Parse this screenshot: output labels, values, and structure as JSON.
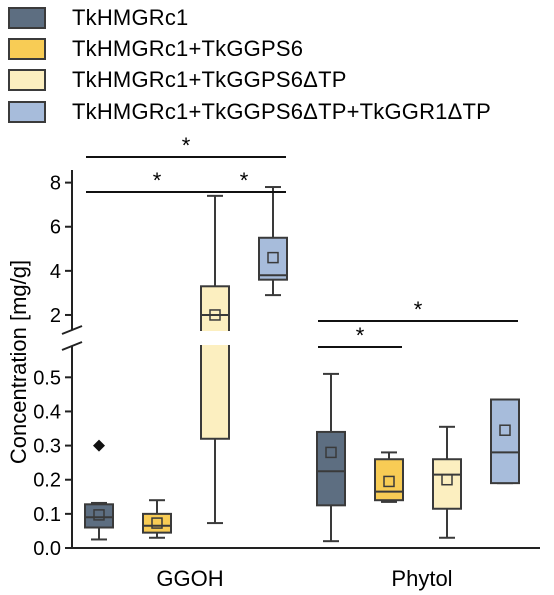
{
  "chart_data": {
    "type": "box",
    "categories": [
      "GGOH",
      "Phytol"
    ],
    "ylabel": "Concentration [mg/g]",
    "xlabel": "",
    "title": "",
    "y_axis": {
      "broken": true,
      "lower_range": [
        0.0,
        0.58
      ],
      "upper_range": [
        1.5,
        8.3
      ],
      "lower_ticks": [
        "0.0",
        "0.1",
        "0.2",
        "0.3",
        "0.4",
        "0.5"
      ],
      "upper_ticks": [
        "2",
        "4",
        "6",
        "8"
      ]
    },
    "legend": {
      "placement": "top"
    },
    "series": [
      {
        "name": "TkHMGRc1",
        "color": "#5d6e81",
        "boxes": [
          {
            "category": "GGOH",
            "whisker_low": 0.025,
            "q1": 0.06,
            "median": 0.09,
            "q3": 0.128,
            "whisker_high": 0.132,
            "mean": 0.097,
            "outliers": [
              0.3
            ]
          },
          {
            "category": "Phytol",
            "whisker_low": 0.02,
            "q1": 0.125,
            "median": 0.225,
            "q3": 0.34,
            "whisker_high": 0.51,
            "mean": 0.28,
            "outliers": []
          }
        ]
      },
      {
        "name": "TkHMGRc1+TkGGPS6",
        "color": "#f8cc55",
        "boxes": [
          {
            "category": "GGOH",
            "whisker_low": 0.03,
            "q1": 0.045,
            "median": 0.065,
            "q3": 0.1,
            "whisker_high": 0.14,
            "mean": 0.073,
            "outliers": []
          },
          {
            "category": "Phytol",
            "whisker_low": 0.135,
            "q1": 0.14,
            "median": 0.165,
            "q3": 0.26,
            "whisker_high": 0.28,
            "mean": 0.195,
            "outliers": []
          }
        ]
      },
      {
        "name": "TkHMGRc1+TkGGPS6ΔTP",
        "color": "#fcefc0",
        "boxes": [
          {
            "category": "GGOH",
            "whisker_low": 0.073,
            "q1": 0.32,
            "median": 2.0,
            "q3": 3.3,
            "whisker_high": 7.4,
            "mean": 2.0,
            "outliers": []
          },
          {
            "category": "Phytol",
            "whisker_low": 0.03,
            "q1": 0.115,
            "median": 0.215,
            "q3": 0.26,
            "whisker_high": 0.355,
            "mean": 0.2,
            "outliers": []
          }
        ]
      },
      {
        "name": "TkHMGRc1+TkGGPS6ΔTP+TkGGR1ΔTP",
        "color": "#a7bcdb",
        "boxes": [
          {
            "category": "GGOH",
            "whisker_low": 2.9,
            "q1": 3.6,
            "median": 3.8,
            "q3": 5.5,
            "whisker_high": 7.8,
            "mean": 4.6,
            "outliers": []
          },
          {
            "category": "Phytol",
            "whisker_low": 0.19,
            "q1": 0.19,
            "median": 0.28,
            "q3": 0.435,
            "whisker_high": 0.435,
            "mean": 0.345,
            "outliers": []
          }
        ]
      }
    ],
    "significance": [
      {
        "category": "GGOH",
        "from_series": 0,
        "to_series": 3,
        "label": "*"
      },
      {
        "category": "GGOH",
        "from_series": 0,
        "to_series": 2,
        "label": "*"
      },
      {
        "category": "GGOH",
        "from_series": 2,
        "to_series": 3,
        "label": "*"
      },
      {
        "category": "Phytol",
        "from_series": 0,
        "to_series": 3,
        "label": "*"
      },
      {
        "category": "Phytol",
        "from_series": 0,
        "to_series": 1,
        "label": "*"
      }
    ]
  }
}
